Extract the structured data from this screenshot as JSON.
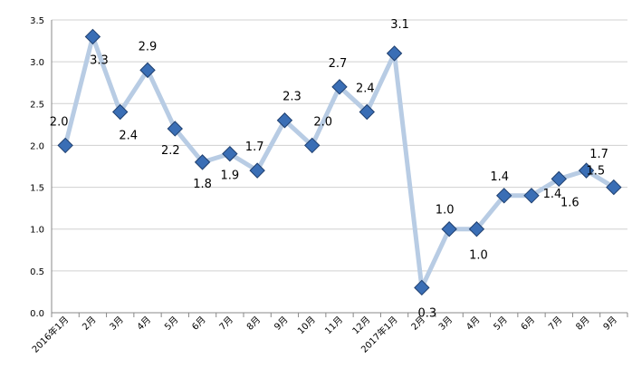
{
  "chart_data": {
    "type": "line",
    "title": "",
    "xlabel": "",
    "ylabel": "",
    "ylim": [
      0,
      3.5
    ],
    "yticks": [
      "0.0",
      "0.5",
      "1.0",
      "1.5",
      "2.0",
      "2.5",
      "3.0",
      "3.5"
    ],
    "grid": true,
    "legend": "none",
    "categories": [
      "2016年1月",
      "2月",
      "3月",
      "4月",
      "5月",
      "6月",
      "7月",
      "8月",
      "9月",
      "10月",
      "11月",
      "12月",
      "2017年1月",
      "2月",
      "3月",
      "4月",
      "5月",
      "6月",
      "7月",
      "8月",
      "9月"
    ],
    "values": [
      2.0,
      3.3,
      2.4,
      2.9,
      2.2,
      1.8,
      1.9,
      1.7,
      2.3,
      2.0,
      2.7,
      2.4,
      3.1,
      0.3,
      1.0,
      1.0,
      1.4,
      1.4,
      1.6,
      1.7,
      1.5
    ],
    "data_labels": [
      "2.0",
      "3.3",
      "2.4",
      "2.9",
      "2.2",
      "1.8",
      "1.9",
      "1.7",
      "2.3",
      "2.0",
      "2.7",
      "2.4",
      "3.1",
      "0.3",
      "1.0",
      "1.0",
      "1.4",
      "1.4",
      "1.6",
      "1.7",
      "1.5"
    ],
    "colors": {
      "line": "#b8cce4",
      "marker_fill": "#3a6eb5",
      "marker_stroke": "#1f3f6e",
      "grid": "#d0d0d0"
    }
  }
}
